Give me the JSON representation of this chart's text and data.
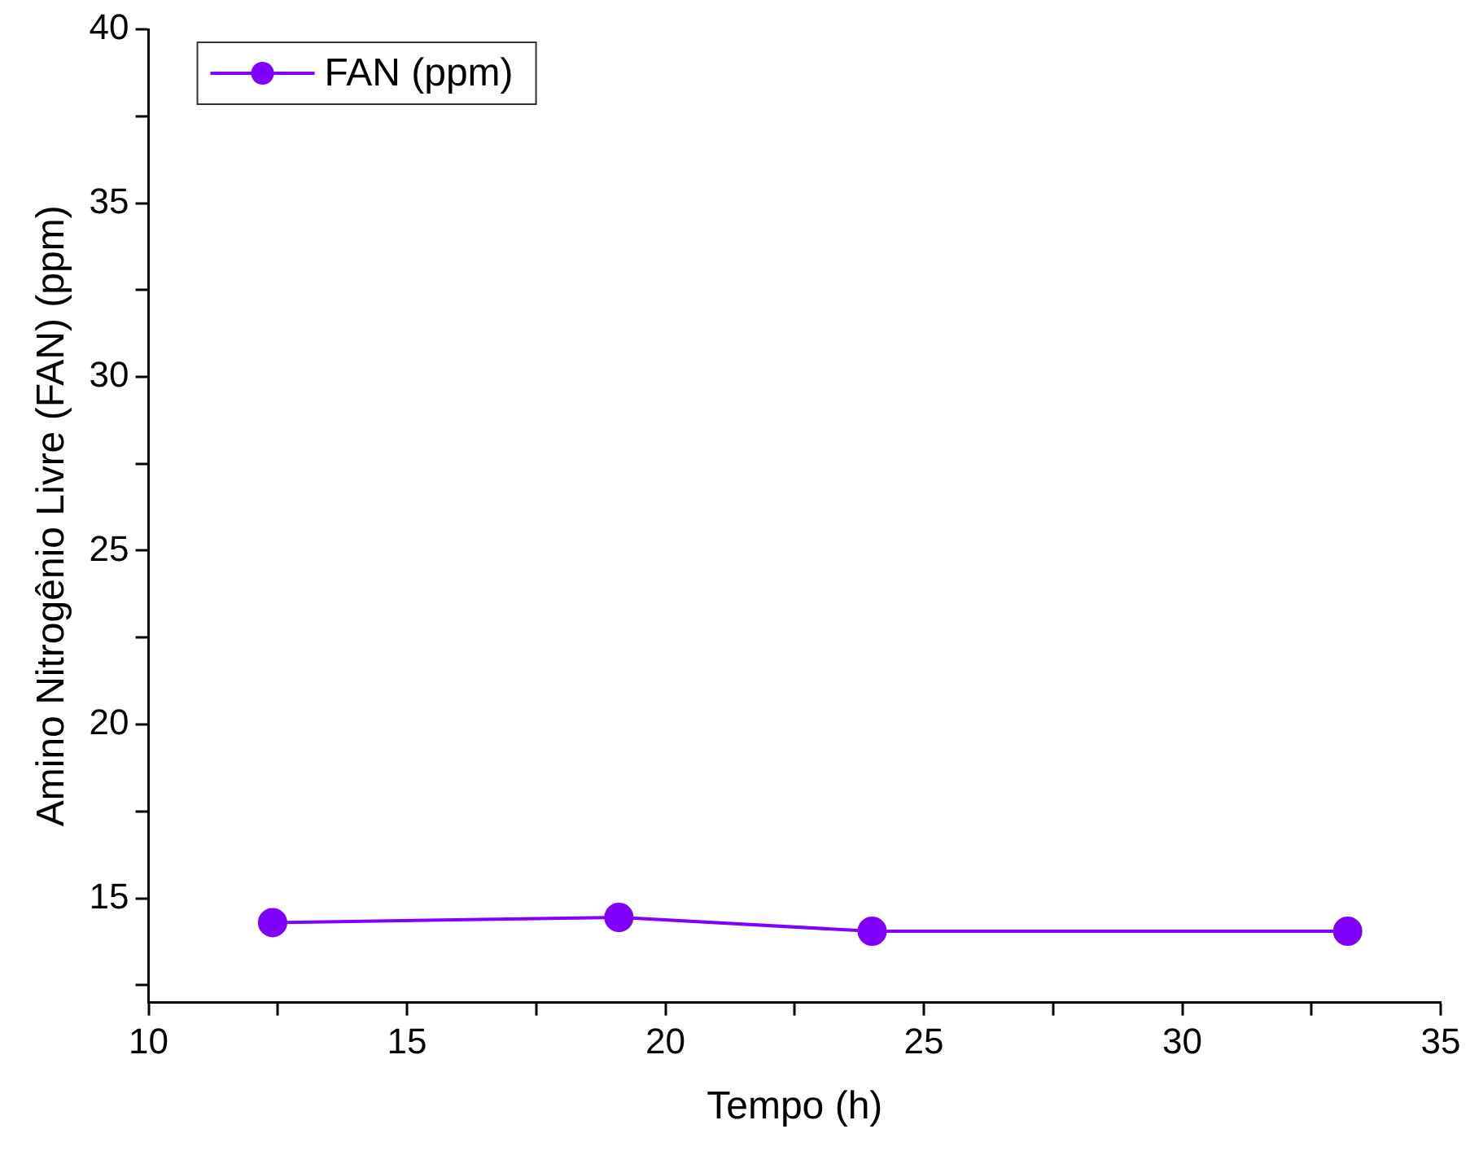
{
  "chart_data": {
    "type": "line",
    "xlabel": "Tempo (h)",
    "ylabel": "Amino Nitrogênio Livre (FAN) (ppm)",
    "x": [
      12.4,
      19.1,
      24.0,
      33.2
    ],
    "series": [
      {
        "name": "FAN (ppm)",
        "color": "#7f00ff",
        "values": [
          14.3,
          14.45,
          14.05,
          14.05
        ]
      }
    ],
    "xlim": [
      10,
      35
    ],
    "xticks": [
      10,
      {
        "value": 12.5,
        "label": null
      },
      15,
      {
        "value": 17.5,
        "label": null
      },
      20,
      {
        "value": 22.5,
        "label": null
      },
      25,
      {
        "value": 27.5,
        "label": null
      },
      30,
      {
        "value": 32.5,
        "label": null
      },
      35
    ],
    "ylim": [
      12,
      40
    ],
    "yticks": [
      {
        "value": 12.5,
        "label": null
      },
      15,
      {
        "value": 17.5,
        "label": null
      },
      20,
      {
        "value": 22.5,
        "label": null
      },
      25,
      {
        "value": 27.5,
        "label": null
      },
      30,
      {
        "value": 32.5,
        "label": null
      },
      35,
      {
        "value": 37.5,
        "label": null
      },
      40
    ],
    "grid": false,
    "legend": "top left",
    "marker": "circle",
    "line_style": "solid"
  }
}
